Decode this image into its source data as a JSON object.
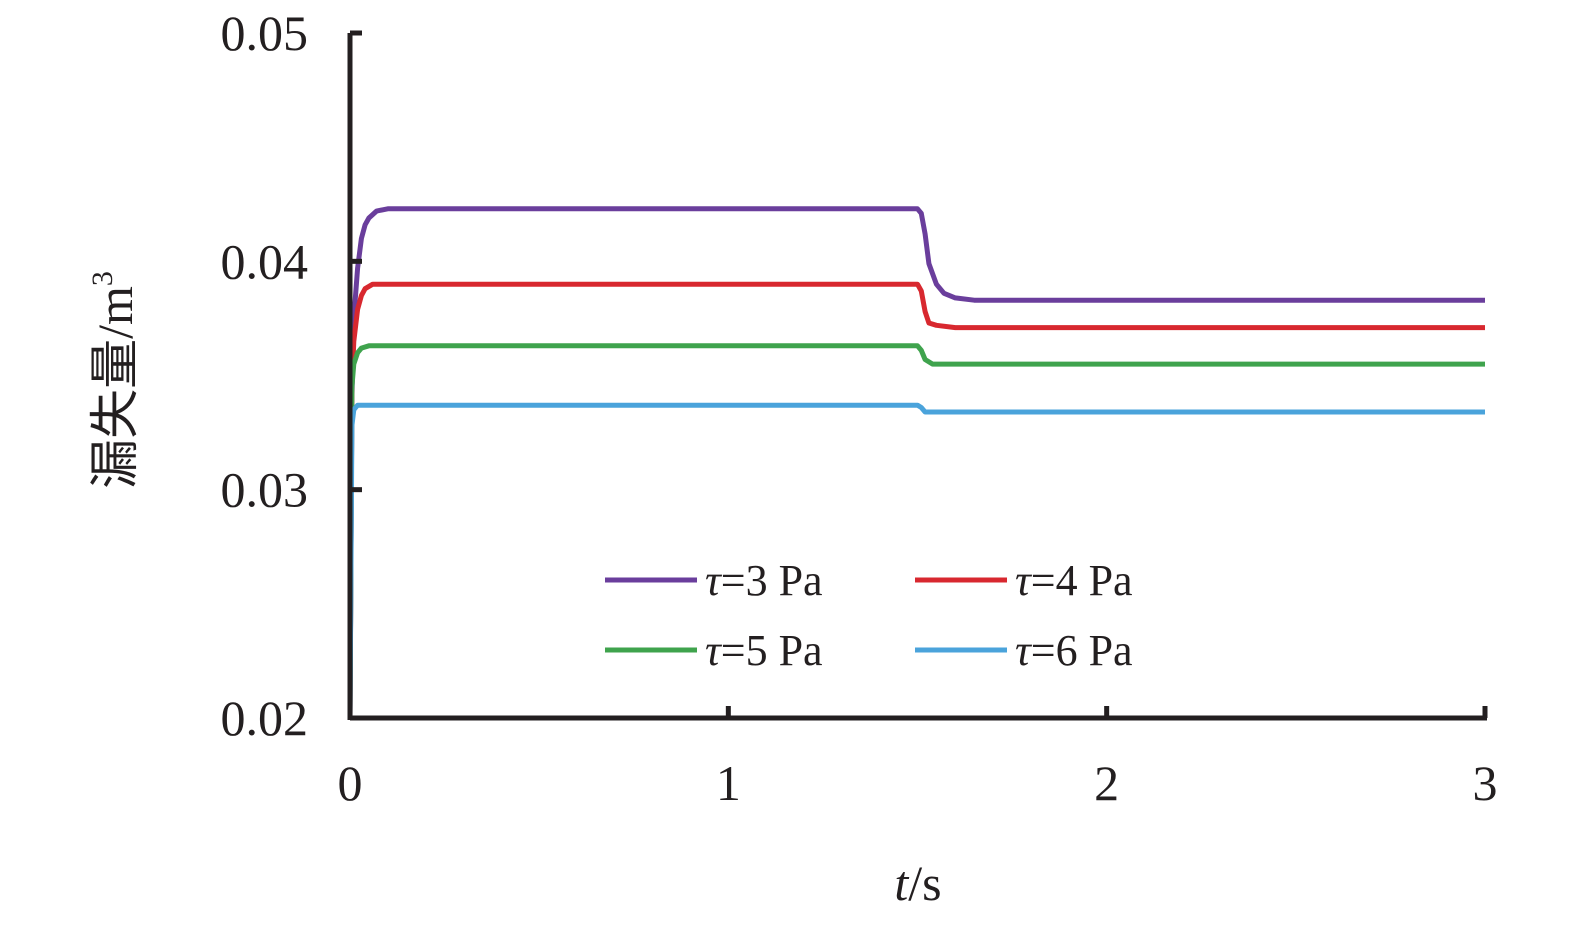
{
  "chart_data": {
    "type": "line",
    "title": "",
    "xlabel": {
      "italic": "t",
      "rest": "/s"
    },
    "ylabel": {
      "text": "漏失量/m",
      "sup": "3"
    },
    "xlim": [
      0,
      3
    ],
    "ylim": [
      0.02,
      0.05
    ],
    "x_ticks": [
      "0",
      "1",
      "2",
      "3"
    ],
    "y_ticks": [
      "0.02",
      "0.03",
      "0.04",
      "0.05"
    ],
    "grid": false,
    "legend_position": "bottom-center inside plot, 2 columns",
    "series": [
      {
        "name": "τ=3 Pa",
        "symbol": "τ",
        "label_rest": "=3 Pa",
        "color": "#6a3e9c",
        "x": [
          0,
          0.005,
          0.01,
          0.02,
          0.03,
          0.04,
          0.05,
          0.07,
          0.1,
          0.15,
          0.3,
          1.0,
          1.5,
          1.51,
          1.52,
          1.53,
          1.55,
          1.57,
          1.6,
          1.65,
          1.7,
          2.0,
          3.0
        ],
        "y": [
          0.02,
          0.034,
          0.0375,
          0.0397,
          0.041,
          0.0416,
          0.0419,
          0.0422,
          0.0423,
          0.0423,
          0.0423,
          0.0423,
          0.0423,
          0.0421,
          0.0412,
          0.0399,
          0.039,
          0.0386,
          0.0384,
          0.0383,
          0.0383,
          0.0383,
          0.0383
        ]
      },
      {
        "name": "τ=4 Pa",
        "symbol": "τ",
        "label_rest": "=4 Pa",
        "color": "#d8282f",
        "x": [
          0,
          0.005,
          0.01,
          0.02,
          0.03,
          0.04,
          0.06,
          0.08,
          0.12,
          0.3,
          1.0,
          1.5,
          1.51,
          1.52,
          1.53,
          1.55,
          1.6,
          1.7,
          2.0,
          3.0
        ],
        "y": [
          0.02,
          0.0345,
          0.0365,
          0.0379,
          0.0385,
          0.0388,
          0.039,
          0.039,
          0.039,
          0.039,
          0.039,
          0.039,
          0.0387,
          0.0378,
          0.0373,
          0.0372,
          0.0371,
          0.0371,
          0.0371,
          0.0371
        ]
      },
      {
        "name": "τ=5 Pa",
        "symbol": "τ",
        "label_rest": "=5 Pa",
        "color": "#3fa34d",
        "x": [
          0,
          0.005,
          0.01,
          0.02,
          0.03,
          0.05,
          0.08,
          0.3,
          1.0,
          1.5,
          1.51,
          1.52,
          1.54,
          1.6,
          2.0,
          3.0
        ],
        "y": [
          0.02,
          0.0345,
          0.0355,
          0.036,
          0.0362,
          0.0363,
          0.0363,
          0.0363,
          0.0363,
          0.0363,
          0.0361,
          0.0357,
          0.0355,
          0.0355,
          0.0355,
          0.0355
        ]
      },
      {
        "name": "τ=6 Pa",
        "symbol": "τ",
        "label_rest": "=6 Pa",
        "color": "#4aa3db",
        "x": [
          0,
          0.005,
          0.01,
          0.02,
          0.04,
          0.3,
          1.0,
          1.5,
          1.51,
          1.52,
          1.55,
          2.0,
          3.0
        ],
        "y": [
          0.02,
          0.0328,
          0.0335,
          0.0337,
          0.0337,
          0.0337,
          0.0337,
          0.0337,
          0.0336,
          0.0334,
          0.0334,
          0.0334,
          0.0334
        ]
      }
    ]
  }
}
